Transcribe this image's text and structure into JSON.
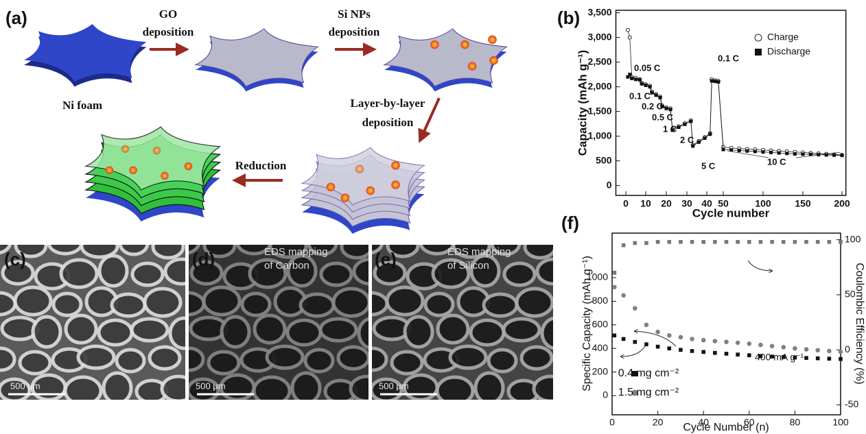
{
  "schematic": {
    "label": "(a)",
    "steps": [
      "GO",
      "deposition",
      "Si NPs",
      "deposition",
      "Ni foam",
      "Layer-by-layer",
      "deposition",
      "Reduction"
    ]
  },
  "micrographs": [
    {
      "label": "(c)",
      "scale": "500 μm"
    },
    {
      "label": "(d)",
      "caption": [
        "EDS mapping",
        "of Carbon"
      ],
      "scale": "500 μm"
    },
    {
      "label": "(e)",
      "caption": [
        "EDS mapping",
        "of Silicon"
      ],
      "scale": "500 μm"
    }
  ],
  "chart_data": [
    {
      "type": "scatter",
      "label": "(b)",
      "xlabel": "Cycle number",
      "ylabel": "Capacity (mAh g⁻¹)",
      "x": [
        1,
        2,
        3,
        5,
        7,
        8,
        10,
        12,
        13,
        15,
        17,
        18,
        20,
        22,
        23,
        26,
        29,
        32,
        33,
        36,
        39,
        42,
        43,
        45,
        47,
        50,
        60,
        70,
        80,
        90,
        100,
        110,
        120,
        130,
        140,
        150,
        160,
        170,
        180,
        190,
        200
      ],
      "series": [
        {
          "name": "Charge",
          "color": "#222",
          "marker": "open-circle",
          "values": [
            3150,
            3000,
            2200,
            2180,
            2150,
            2080,
            2050,
            2020,
            1900,
            1850,
            1800,
            1620,
            1580,
            1560,
            1140,
            1200,
            1260,
            1320,
            820,
            900,
            980,
            1060,
            2150,
            2130,
            2120,
            780,
            760,
            750,
            740,
            730,
            720,
            710,
            700,
            690,
            680,
            670,
            660,
            650,
            640,
            630,
            620
          ]
        },
        {
          "name": "Discharge",
          "color": "#111",
          "marker": "filled-square",
          "values": [
            2200,
            2250,
            2170,
            2150,
            2140,
            2060,
            2030,
            2000,
            1880,
            1830,
            1780,
            1600,
            1560,
            1540,
            1120,
            1180,
            1240,
            1300,
            800,
            880,
            960,
            1040,
            2120,
            2110,
            2100,
            730,
            720,
            710,
            700,
            690,
            680,
            670,
            660,
            650,
            640,
            635,
            630,
            625,
            620,
            615,
            610
          ]
        }
      ],
      "annotations": [
        "0.05 C",
        "0.1 C",
        "0.2 C",
        "0.5 C",
        "1 C",
        "2 C",
        "5 C",
        "0.1 C",
        "10 C"
      ],
      "xlim": [
        -5,
        205
      ],
      "xticks": [
        0,
        10,
        20,
        30,
        40,
        50,
        100,
        150,
        200
      ],
      "ylim": [
        -200,
        3550
      ],
      "yticks": [
        0,
        500,
        {
          "value": 1000,
          "label": "1,000"
        },
        {
          "value": 1500,
          "label": "1,500"
        },
        {
          "value": 2000,
          "label": "2,000"
        },
        {
          "value": 2500,
          "label": "2,500"
        },
        {
          "value": 3000,
          "label": "3,000"
        },
        {
          "value": 3500,
          "label": "3,500"
        }
      ],
      "legend": "top-right"
    },
    {
      "type": "scatter",
      "label": "(f)",
      "xlabel": "Cycle Number (n)",
      "ylabel": "Specific Capacity (mAh g⁻¹)",
      "y2label": "Coulombic Efficiency (%)",
      "x": [
        1,
        5,
        10,
        15,
        20,
        25,
        30,
        35,
        40,
        45,
        50,
        55,
        60,
        65,
        70,
        75,
        80,
        85,
        90,
        95,
        100
      ],
      "series": [
        {
          "name": "0.4 mg cm⁻²",
          "color": "#111",
          "marker": "filled-square",
          "values": [
            510,
            480,
            455,
            435,
            415,
            400,
            388,
            378,
            370,
            362,
            355,
            348,
            342,
            336,
            331,
            327,
            323,
            319,
            316,
            313,
            310
          ]
        },
        {
          "name": "1.5 mg cm⁻²",
          "color": "#808080",
          "marker": "filled-circle",
          "values": [
            920,
            850,
            740,
            600,
            540,
            510,
            495,
            480,
            470,
            462,
            455,
            448,
            440,
            430,
            420,
            410,
            400,
            392,
            385,
            378,
            372
          ]
        },
        {
          "axis": "y2",
          "color": "#777",
          "marker": "filled-square",
          "values": [
            70,
            95,
            97,
            97,
            98,
            98,
            98,
            98,
            98,
            98,
            98,
            98,
            98,
            98,
            98,
            98,
            98,
            98,
            98,
            98,
            98
          ]
        }
      ],
      "annotations": [
        "400 mA g⁻¹"
      ],
      "xlim": [
        0,
        100
      ],
      "xticks": [
        0,
        20,
        40,
        60,
        80,
        100
      ],
      "ylim": [
        -163,
        1378
      ],
      "yticks": [
        0,
        200,
        400,
        600,
        800,
        1000
      ],
      "y2lim": [
        -59,
        106
      ],
      "y2ticks": [
        -50,
        0,
        50,
        100
      ],
      "legend": "bottom-left"
    }
  ]
}
